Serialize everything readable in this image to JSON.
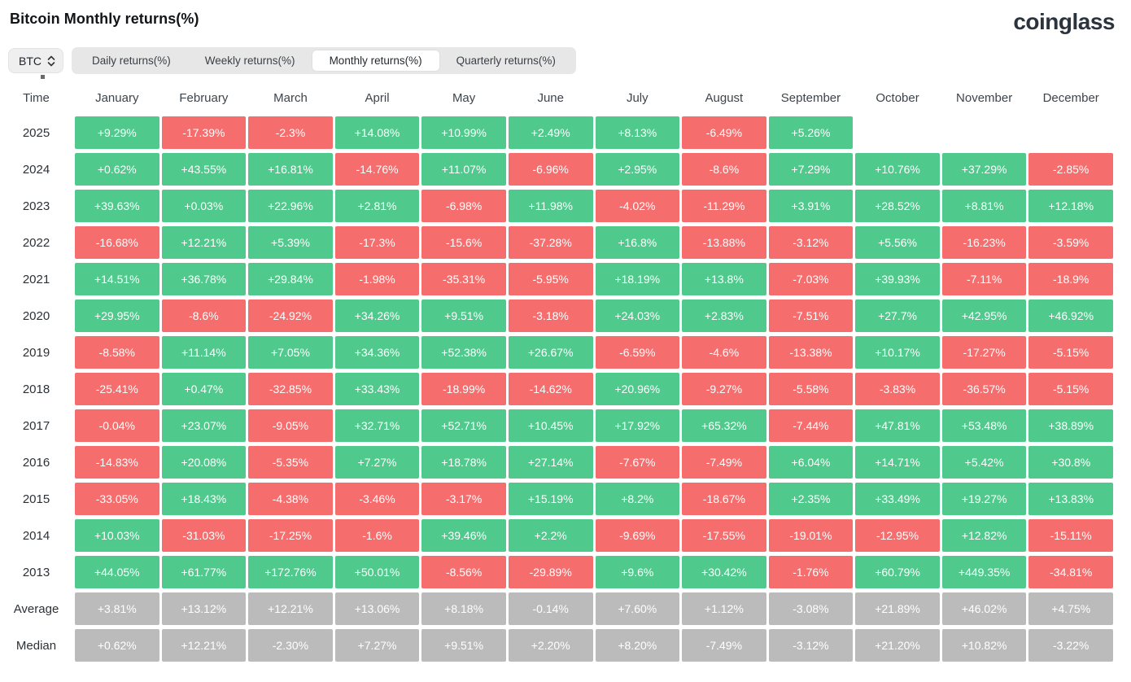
{
  "header": {
    "title": "Bitcoin Monthly returns(%)",
    "logo": "coinglass"
  },
  "controls": {
    "coin_selector": {
      "label": "BTC"
    },
    "tabs": [
      {
        "label": "Daily returns(%)",
        "active": false
      },
      {
        "label": "Weekly returns(%)",
        "active": false
      },
      {
        "label": "Monthly returns(%)",
        "active": true
      },
      {
        "label": "Quarterly returns(%)",
        "active": false
      }
    ]
  },
  "colors": {
    "positive": "#4FC98C",
    "negative": "#F66D6D",
    "summary": "#BBBBBB"
  },
  "chart_data": {
    "type": "heatmap",
    "title": "Bitcoin Monthly returns(%)",
    "columns": [
      "Time",
      "January",
      "February",
      "March",
      "April",
      "May",
      "June",
      "July",
      "August",
      "September",
      "October",
      "November",
      "December"
    ],
    "rows": [
      {
        "label": "2025",
        "summary": false,
        "values": [
          "+9.29%",
          "-17.39%",
          "-2.3%",
          "+14.08%",
          "+10.99%",
          "+2.49%",
          "+8.13%",
          "-6.49%",
          "+5.26%",
          null,
          null,
          null
        ]
      },
      {
        "label": "2024",
        "summary": false,
        "values": [
          "+0.62%",
          "+43.55%",
          "+16.81%",
          "-14.76%",
          "+11.07%",
          "-6.96%",
          "+2.95%",
          "-8.6%",
          "+7.29%",
          "+10.76%",
          "+37.29%",
          "-2.85%"
        ]
      },
      {
        "label": "2023",
        "summary": false,
        "values": [
          "+39.63%",
          "+0.03%",
          "+22.96%",
          "+2.81%",
          "-6.98%",
          "+11.98%",
          "-4.02%",
          "-11.29%",
          "+3.91%",
          "+28.52%",
          "+8.81%",
          "+12.18%"
        ]
      },
      {
        "label": "2022",
        "summary": false,
        "values": [
          "-16.68%",
          "+12.21%",
          "+5.39%",
          "-17.3%",
          "-15.6%",
          "-37.28%",
          "+16.8%",
          "-13.88%",
          "-3.12%",
          "+5.56%",
          "-16.23%",
          "-3.59%"
        ]
      },
      {
        "label": "2021",
        "summary": false,
        "values": [
          "+14.51%",
          "+36.78%",
          "+29.84%",
          "-1.98%",
          "-35.31%",
          "-5.95%",
          "+18.19%",
          "+13.8%",
          "-7.03%",
          "+39.93%",
          "-7.11%",
          "-18.9%"
        ]
      },
      {
        "label": "2020",
        "summary": false,
        "values": [
          "+29.95%",
          "-8.6%",
          "-24.92%",
          "+34.26%",
          "+9.51%",
          "-3.18%",
          "+24.03%",
          "+2.83%",
          "-7.51%",
          "+27.7%",
          "+42.95%",
          "+46.92%"
        ]
      },
      {
        "label": "2019",
        "summary": false,
        "values": [
          "-8.58%",
          "+11.14%",
          "+7.05%",
          "+34.36%",
          "+52.38%",
          "+26.67%",
          "-6.59%",
          "-4.6%",
          "-13.38%",
          "+10.17%",
          "-17.27%",
          "-5.15%"
        ]
      },
      {
        "label": "2018",
        "summary": false,
        "values": [
          "-25.41%",
          "+0.47%",
          "-32.85%",
          "+33.43%",
          "-18.99%",
          "-14.62%",
          "+20.96%",
          "-9.27%",
          "-5.58%",
          "-3.83%",
          "-36.57%",
          "-5.15%"
        ]
      },
      {
        "label": "2017",
        "summary": false,
        "values": [
          "-0.04%",
          "+23.07%",
          "-9.05%",
          "+32.71%",
          "+52.71%",
          "+10.45%",
          "+17.92%",
          "+65.32%",
          "-7.44%",
          "+47.81%",
          "+53.48%",
          "+38.89%"
        ]
      },
      {
        "label": "2016",
        "summary": false,
        "values": [
          "-14.83%",
          "+20.08%",
          "-5.35%",
          "+7.27%",
          "+18.78%",
          "+27.14%",
          "-7.67%",
          "-7.49%",
          "+6.04%",
          "+14.71%",
          "+5.42%",
          "+30.8%"
        ]
      },
      {
        "label": "2015",
        "summary": false,
        "values": [
          "-33.05%",
          "+18.43%",
          "-4.38%",
          "-3.46%",
          "-3.17%",
          "+15.19%",
          "+8.2%",
          "-18.67%",
          "+2.35%",
          "+33.49%",
          "+19.27%",
          "+13.83%"
        ]
      },
      {
        "label": "2014",
        "summary": false,
        "values": [
          "+10.03%",
          "-31.03%",
          "-17.25%",
          "-1.6%",
          "+39.46%",
          "+2.2%",
          "-9.69%",
          "-17.55%",
          "-19.01%",
          "-12.95%",
          "+12.82%",
          "-15.11%"
        ]
      },
      {
        "label": "2013",
        "summary": false,
        "values": [
          "+44.05%",
          "+61.77%",
          "+172.76%",
          "+50.01%",
          "-8.56%",
          "-29.89%",
          "+9.6%",
          "+30.42%",
          "-1.76%",
          "+60.79%",
          "+449.35%",
          "-34.81%"
        ]
      },
      {
        "label": "Average",
        "summary": true,
        "values": [
          "+3.81%",
          "+13.12%",
          "+12.21%",
          "+13.06%",
          "+8.18%",
          "-0.14%",
          "+7.60%",
          "+1.12%",
          "-3.08%",
          "+21.89%",
          "+46.02%",
          "+4.75%"
        ]
      },
      {
        "label": "Median",
        "summary": true,
        "values": [
          "+0.62%",
          "+12.21%",
          "-2.30%",
          "+7.27%",
          "+9.51%",
          "+2.20%",
          "+8.20%",
          "-7.49%",
          "-3.12%",
          "+21.20%",
          "+10.82%",
          "-3.22%"
        ]
      }
    ]
  }
}
